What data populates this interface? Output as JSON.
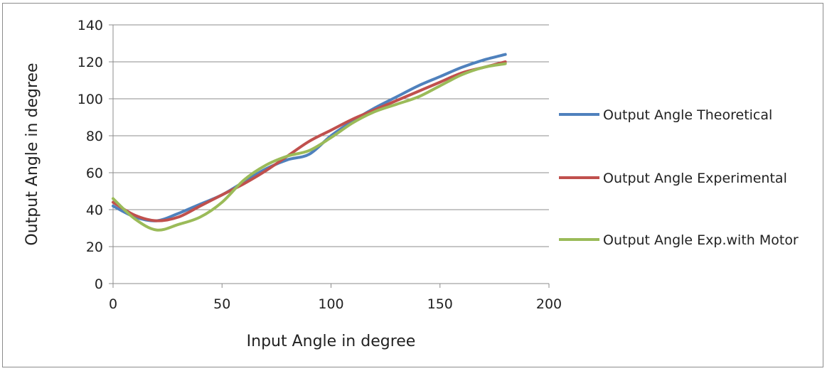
{
  "chart_data": {
    "type": "line",
    "title": "",
    "xlabel": "Input Angle in degree",
    "ylabel": "Output Angle in degree",
    "xlim": [
      0,
      200
    ],
    "ylim": [
      0,
      140
    ],
    "xticks": [
      0,
      50,
      100,
      150,
      200
    ],
    "yticks": [
      0,
      20,
      40,
      60,
      80,
      100,
      120,
      140
    ],
    "grid": "horizontal",
    "legend": "right",
    "series": [
      {
        "name": "Output Angle Theoretical",
        "color": "#4f81bd",
        "x": [
          0,
          10,
          20,
          30,
          40,
          50,
          60,
          70,
          80,
          90,
          100,
          110,
          120,
          130,
          140,
          150,
          160,
          170,
          180
        ],
        "y": [
          42,
          36,
          34,
          38,
          43,
          48,
          55,
          62,
          67,
          70,
          80,
          88,
          95,
          101,
          107,
          112,
          117,
          121,
          124
        ]
      },
      {
        "name": "Output Angle Experimental",
        "color": "#c0504d",
        "x": [
          0,
          10,
          20,
          30,
          40,
          50,
          60,
          70,
          80,
          90,
          100,
          110,
          120,
          130,
          140,
          150,
          160,
          170,
          180
        ],
        "y": [
          44,
          37,
          34,
          36,
          42,
          48,
          54,
          61,
          69,
          77,
          83,
          89,
          94,
          99,
          104,
          109,
          114,
          117,
          120
        ]
      },
      {
        "name": "Output Angle Exp.with Motor",
        "color": "#9bbb59",
        "x": [
          0,
          10,
          20,
          30,
          40,
          50,
          60,
          70,
          80,
          90,
          100,
          110,
          120,
          130,
          140,
          150,
          160,
          170,
          180
        ],
        "y": [
          46,
          35,
          29,
          32,
          36,
          44,
          56,
          64,
          69,
          72,
          79,
          87,
          93,
          97,
          101,
          107,
          113,
          117,
          119
        ]
      }
    ]
  }
}
